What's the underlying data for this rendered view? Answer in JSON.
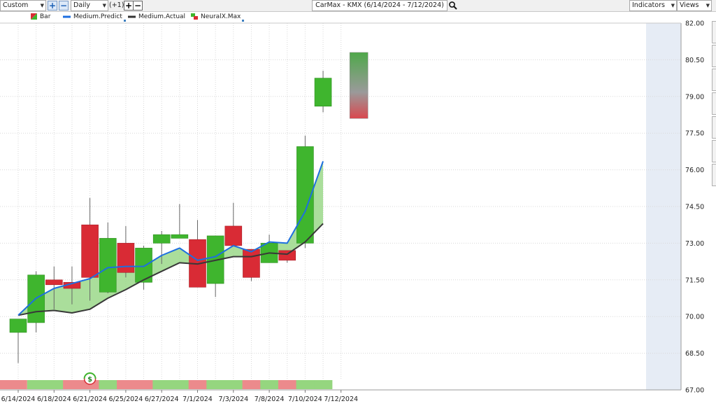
{
  "toolbar": {
    "period_select": "Custom",
    "interval_select": "Daily",
    "offset_label": "(+1)",
    "title": "CarMax - KMX (6/14/2024 - 7/12/2024)",
    "indicators_button": "Indicators",
    "views_button": "Views",
    "search_icon": "magnifier-icon",
    "add_icon": "plus-icon",
    "remove_icon": "minus-icon"
  },
  "legend": [
    {
      "label": "Bar",
      "icon": "bar-swatch-icon"
    },
    {
      "label": "Medium.Predict",
      "color": "#1e6fe0"
    },
    {
      "label": "Medium.Actual",
      "color": "#333333"
    },
    {
      "label": "NeuralX.Max",
      "icon": "neuralx-swatch-icon"
    }
  ],
  "colors": {
    "up": "#3fb52e",
    "down": "#d92b35",
    "fill": "#9bd88a",
    "predict": "#1e6fe0",
    "actual": "#383838",
    "forecast_bg": "#e6ecf5",
    "strip_up": "#95d67f",
    "strip_down": "#ec8a8c"
  },
  "chart_data": {
    "type": "candlestick",
    "title": "CarMax - KMX (6/14/2024 - 7/12/2024)",
    "ylim": [
      67.0,
      82.0
    ],
    "y_ticks": [
      "82.00",
      "80.50",
      "79.00",
      "77.50",
      "76.00",
      "74.50",
      "73.00",
      "71.50",
      "70.00",
      "68.50",
      "67.00"
    ],
    "x_tick_labels": [
      {
        "label": "6/14/2024",
        "index": 0
      },
      {
        "label": "6/18/2024",
        "index": 2
      },
      {
        "label": "6/21/2024",
        "index": 4
      },
      {
        "label": "6/25/2024",
        "index": 6
      },
      {
        "label": "6/27/2024",
        "index": 8
      },
      {
        "label": "7/1/2024",
        "index": 10
      },
      {
        "label": "7/3/2024",
        "index": 12
      },
      {
        "label": "7/8/2024",
        "index": 14
      },
      {
        "label": "7/10/2024",
        "index": 16
      },
      {
        "label": "7/12/2024",
        "index": 18
      }
    ],
    "candles": [
      {
        "open": 69.35,
        "close": 69.9,
        "high": 69.9,
        "low": 68.1
      },
      {
        "open": 69.75,
        "close": 71.7,
        "high": 71.85,
        "low": 69.35
      },
      {
        "open": 71.5,
        "close": 71.3,
        "high": 72.05,
        "low": 70.3
      },
      {
        "open": 71.4,
        "close": 71.15,
        "high": 72.05,
        "low": 70.5
      },
      {
        "open": 73.75,
        "close": 71.6,
        "high": 74.85,
        "low": 70.65
      },
      {
        "open": 71.0,
        "close": 73.2,
        "high": 73.85,
        "low": 70.95
      },
      {
        "open": 73.0,
        "close": 71.8,
        "high": 73.7,
        "low": 71.6
      },
      {
        "open": 71.4,
        "close": 72.8,
        "high": 72.9,
        "low": 71.1
      },
      {
        "open": 73.0,
        "close": 73.35,
        "high": 73.5,
        "low": 72.15
      },
      {
        "open": 73.2,
        "close": 73.35,
        "high": 74.6,
        "low": 73.2
      },
      {
        "open": 73.15,
        "close": 71.2,
        "high": 73.95,
        "low": 71.2
      },
      {
        "open": 71.35,
        "close": 73.3,
        "high": 73.3,
        "low": 70.8
      },
      {
        "open": 73.7,
        "close": 72.9,
        "high": 74.65,
        "low": 72.9
      },
      {
        "open": 72.75,
        "close": 71.6,
        "high": 72.75,
        "low": 71.45
      },
      {
        "open": 72.2,
        "close": 73.0,
        "high": 73.35,
        "low": 72.2
      },
      {
        "open": 72.7,
        "close": 72.3,
        "high": 72.7,
        "low": 72.2
      },
      {
        "open": 73.0,
        "close": 76.95,
        "high": 77.4,
        "low": 72.8
      },
      {
        "open": 78.6,
        "close": 79.75,
        "high": 80.05,
        "low": 78.35
      }
    ],
    "series": [
      {
        "name": "Medium.Predict",
        "values": [
          70.05,
          70.75,
          71.15,
          71.35,
          71.55,
          72.0,
          72.05,
          72.05,
          72.5,
          72.8,
          72.3,
          72.45,
          72.9,
          72.65,
          73.05,
          73.0,
          74.3,
          76.35
        ]
      },
      {
        "name": "Medium.Actual",
        "values": [
          70.05,
          70.2,
          70.25,
          70.15,
          70.3,
          70.75,
          71.1,
          71.5,
          71.85,
          72.2,
          72.15,
          72.3,
          72.45,
          72.45,
          72.6,
          72.55,
          73.05,
          73.8
        ]
      }
    ],
    "neuralx_max": {
      "index": 18,
      "top": 80.8,
      "bottom": 78.1
    },
    "signal_strip": [
      "down",
      "up",
      "up",
      "down",
      "down",
      "up",
      "down",
      "down",
      "up",
      "up",
      "down",
      "up",
      "up",
      "down",
      "up",
      "down",
      "up",
      "up"
    ],
    "signal_marker": {
      "index": 4,
      "symbol": "$"
    }
  }
}
